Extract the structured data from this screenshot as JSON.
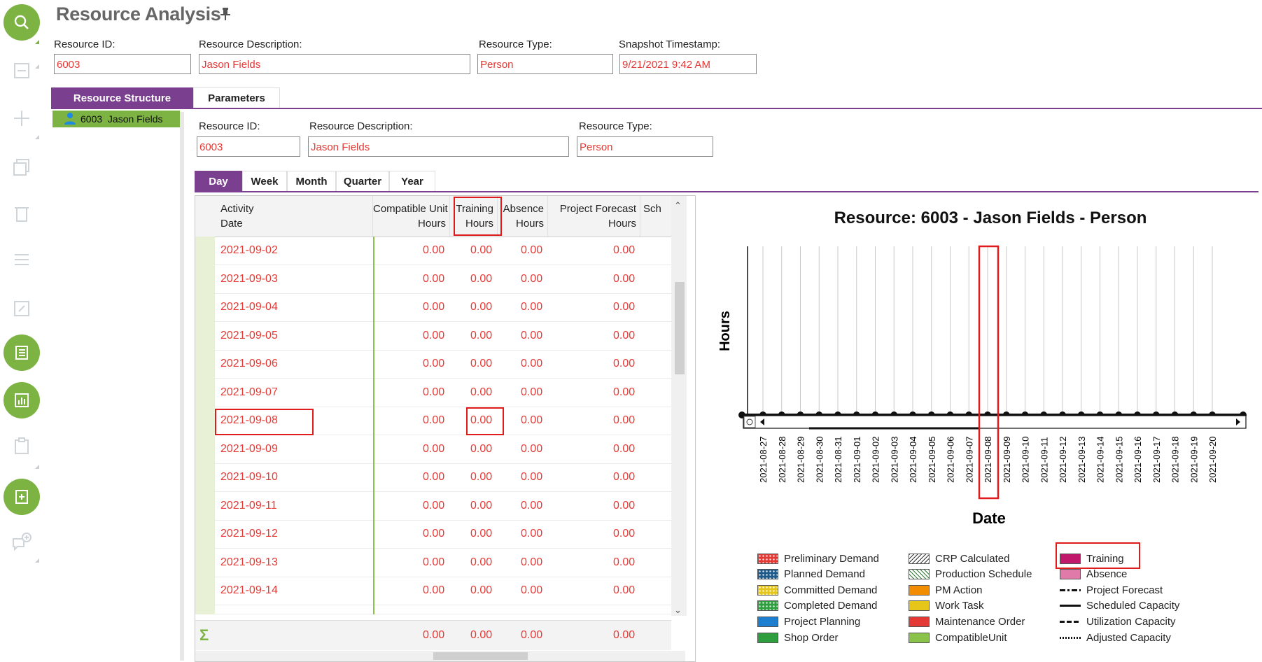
{
  "page": {
    "title": "Resource Analysis"
  },
  "header": {
    "resource_id_label": "Resource ID:",
    "resource_id_value": "6003",
    "resource_desc_label": "Resource Description:",
    "resource_desc_value": "Jason Fields",
    "resource_type_label": "Resource Type:",
    "resource_type_value": "Person",
    "snapshot_label": "Snapshot Timestamp:",
    "snapshot_value": "9/21/2021 9:42 AM"
  },
  "tabs": {
    "structure": "Resource Structure",
    "parameters": "Parameters"
  },
  "tree": {
    "item": "6003  Jason Fields"
  },
  "detail": {
    "resource_id_label": "Resource ID:",
    "resource_id_value": "6003",
    "resource_desc_label": "Resource Description:",
    "resource_desc_value": "Jason Fields",
    "resource_type_label": "Resource Type:",
    "resource_type_value": "Person"
  },
  "period_tabs": [
    "Day",
    "Week",
    "Month",
    "Quarter",
    "Year"
  ],
  "grid": {
    "headers": {
      "activity_date": [
        "Activity",
        "Date"
      ],
      "compatible": [
        "Compatible Unit",
        "Hours"
      ],
      "training": [
        "Training",
        "Hours"
      ],
      "absence": [
        "Absence",
        "Hours"
      ],
      "forecast": [
        "Project Forecast",
        "Hours"
      ],
      "sch": [
        "Sch"
      ]
    },
    "rows": [
      {
        "date": "2021-09-02",
        "c": "0.00",
        "t": "0.00",
        "a": "0.00",
        "f": "0.00"
      },
      {
        "date": "2021-09-03",
        "c": "0.00",
        "t": "0.00",
        "a": "0.00",
        "f": "0.00"
      },
      {
        "date": "2021-09-04",
        "c": "0.00",
        "t": "0.00",
        "a": "0.00",
        "f": "0.00"
      },
      {
        "date": "2021-09-05",
        "c": "0.00",
        "t": "0.00",
        "a": "0.00",
        "f": "0.00"
      },
      {
        "date": "2021-09-06",
        "c": "0.00",
        "t": "0.00",
        "a": "0.00",
        "f": "0.00"
      },
      {
        "date": "2021-09-07",
        "c": "0.00",
        "t": "0.00",
        "a": "0.00",
        "f": "0.00"
      },
      {
        "date": "2021-09-08",
        "c": "0.00",
        "t": "0.00",
        "a": "0.00",
        "f": "0.00"
      },
      {
        "date": "2021-09-09",
        "c": "0.00",
        "t": "0.00",
        "a": "0.00",
        "f": "0.00"
      },
      {
        "date": "2021-09-10",
        "c": "0.00",
        "t": "0.00",
        "a": "0.00",
        "f": "0.00"
      },
      {
        "date": "2021-09-11",
        "c": "0.00",
        "t": "0.00",
        "a": "0.00",
        "f": "0.00"
      },
      {
        "date": "2021-09-12",
        "c": "0.00",
        "t": "0.00",
        "a": "0.00",
        "f": "0.00"
      },
      {
        "date": "2021-09-13",
        "c": "0.00",
        "t": "0.00",
        "a": "0.00",
        "f": "0.00"
      },
      {
        "date": "2021-09-14",
        "c": "0.00",
        "t": "0.00",
        "a": "0.00",
        "f": "0.00"
      }
    ],
    "sum_symbol": "Σ",
    "totals": {
      "c": "0.00",
      "t": "0.00",
      "a": "0.00",
      "f": "0.00"
    }
  },
  "chart_data": {
    "type": "bar",
    "title": "Resource: 6003 - Jason Fields - Person",
    "xlabel": "Date",
    "ylabel": "Hours",
    "categories": [
      "2021-08-27",
      "2021-08-28",
      "2021-08-29",
      "2021-08-30",
      "2021-08-31",
      "2021-09-01",
      "2021-09-02",
      "2021-09-03",
      "2021-09-04",
      "2021-09-05",
      "2021-09-06",
      "2021-09-07",
      "2021-09-08",
      "2021-09-09",
      "2021-09-10",
      "2021-09-11",
      "2021-09-12",
      "2021-09-13",
      "2021-09-14",
      "2021-09-15",
      "2021-09-16",
      "2021-09-17",
      "2021-09-18",
      "2021-09-19",
      "2021-09-20"
    ],
    "values": [
      0,
      0,
      0,
      0,
      0,
      0,
      0,
      0,
      0,
      0,
      0,
      0,
      0,
      0,
      0,
      0,
      0,
      0,
      0,
      0,
      0,
      0,
      0,
      0,
      0
    ],
    "grid": true,
    "legend": "bottom",
    "legend_items": [
      {
        "label": "Preliminary Demand",
        "color": "#e53935",
        "pattern": "dots"
      },
      {
        "label": "Planned Demand",
        "color": "#1e5b8a",
        "pattern": "dots"
      },
      {
        "label": "Committed Demand",
        "color": "#e6c619",
        "pattern": "dots"
      },
      {
        "label": "Completed Demand",
        "color": "#2e9e3e",
        "pattern": "dots"
      },
      {
        "label": "Project Planning",
        "color": "#1e7fd1",
        "pattern": "solid"
      },
      {
        "label": "Shop Order",
        "color": "#2e9e3e",
        "pattern": "solid"
      },
      {
        "label": "CRP Calculated",
        "color": "#ffffff",
        "pattern": "hatch-dark"
      },
      {
        "label": "Production Schedule",
        "color": "#ffffff",
        "pattern": "hatch-green"
      },
      {
        "label": "PM Action",
        "color": "#f28c00",
        "pattern": "solid"
      },
      {
        "label": "Work Task",
        "color": "#e6c619",
        "pattern": "solid"
      },
      {
        "label": "Maintenance Order",
        "color": "#e53935",
        "pattern": "solid"
      },
      {
        "label": "CompatibleUnit",
        "color": "#8bc34a",
        "pattern": "solid"
      },
      {
        "label": "Training",
        "color": "#c2186b",
        "pattern": "solid"
      },
      {
        "label": "Absence",
        "color": "#e07aa9",
        "pattern": "solid"
      },
      {
        "label": "Project Forecast",
        "color": "#111111",
        "pattern": "dash-dot"
      },
      {
        "label": "Scheduled Capacity",
        "color": "#111111",
        "pattern": "line"
      },
      {
        "label": "Utilization Capacity",
        "color": "#111111",
        "pattern": "dashed"
      },
      {
        "label": "Adjusted Capacity",
        "color": "#111111",
        "pattern": "dotted"
      }
    ]
  }
}
